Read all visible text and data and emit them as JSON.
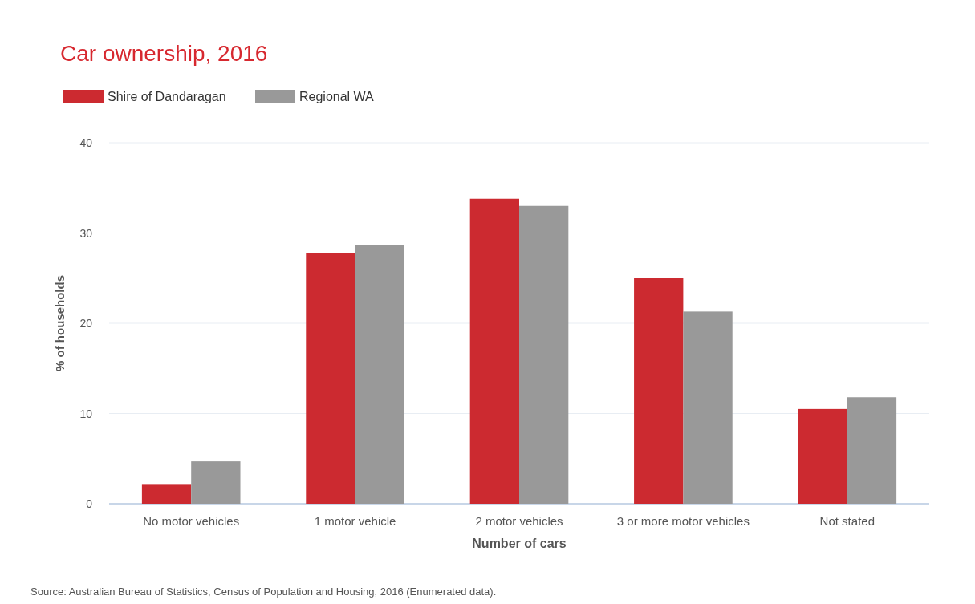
{
  "chart_data": {
    "type": "bar",
    "title": "Car ownership, 2016",
    "xlabel": "Number of cars",
    "ylabel": "% of households",
    "categories": [
      "No motor vehicles",
      "1 motor vehicle",
      "2 motor vehicles",
      "3 or more motor vehicles",
      "Not stated"
    ],
    "series": [
      {
        "name": "Shire of Dandaragan",
        "color": "#cc2a30",
        "values": [
          2.1,
          27.8,
          33.8,
          25.0,
          10.5
        ]
      },
      {
        "name": "Regional WA",
        "color": "#999999",
        "values": [
          4.7,
          28.7,
          33.0,
          21.3,
          11.8
        ]
      }
    ],
    "ylim": [
      0,
      40
    ],
    "yticks": [
      0,
      10,
      20,
      30,
      40
    ],
    "grid": "y",
    "legend": "top left",
    "annotations": [
      "Source: Australian Bureau of Statistics, Census of Population and Housing, 2016 (Enumerated data)."
    ]
  }
}
